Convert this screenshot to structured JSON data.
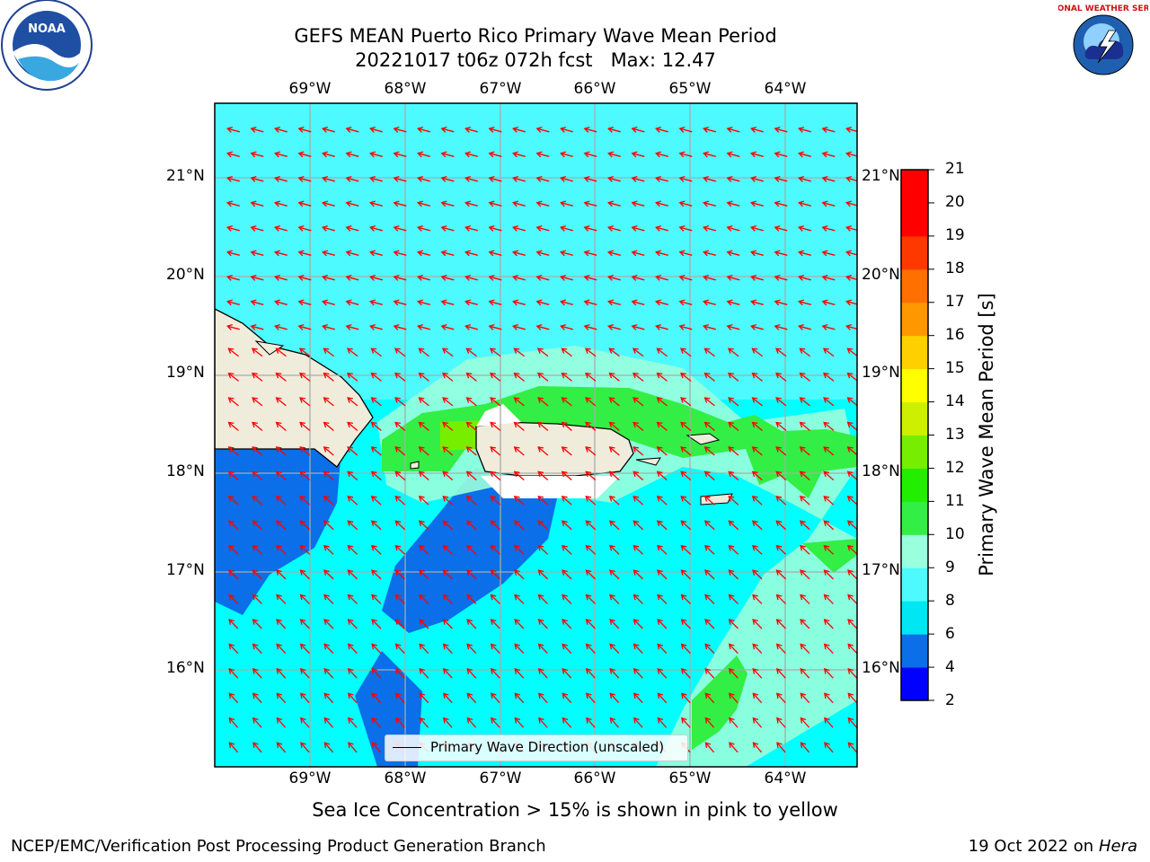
{
  "title_line1": "GEFS MEAN Puerto Rico Primary Wave Mean Period",
  "title_line2": "20221017 t06z 072h fcst   Max: 12.47",
  "longitude_labels": [
    "69°W",
    "68°W",
    "67°W",
    "66°W",
    "65°W",
    "64°W"
  ],
  "latitude_labels": [
    "21°N",
    "20°N",
    "19°N",
    "18°N",
    "17°N",
    "16°N"
  ],
  "legend_label": "Primary Wave Direction (unscaled)",
  "colorbar": {
    "label": "Primary Wave Mean Period [s]",
    "ticks": [
      "2",
      "4",
      "6",
      "8",
      "9",
      "10",
      "11",
      "12",
      "13",
      "14",
      "15",
      "16",
      "17",
      "18",
      "19",
      "20",
      "21"
    ],
    "colors": [
      "#0000ff",
      "#0a6fe8",
      "#00e6f2",
      "#4dfaff",
      "#99ffdd",
      "#33ee44",
      "#22ee00",
      "#77ee00",
      "#ccf000",
      "#ffff00",
      "#ffd000",
      "#ff9800",
      "#ff7000",
      "#ff3800",
      "#ff0000"
    ]
  },
  "caption": "Sea Ice Concentration > 15% is shown in pink to yellow",
  "footer_left": "NCEP/EMC/Verification Post Processing Product Generation Branch",
  "footer_right_prefix": "19 Oct 2022 on ",
  "footer_right_machine": "Hera",
  "logos": {
    "noaa_text": "NOAA",
    "nws_text": "NATIONAL WEATHER SERVICE"
  },
  "map_colors": {
    "background": "#00ffff",
    "land": "#efecdc",
    "arrow": "#ff0000"
  }
}
